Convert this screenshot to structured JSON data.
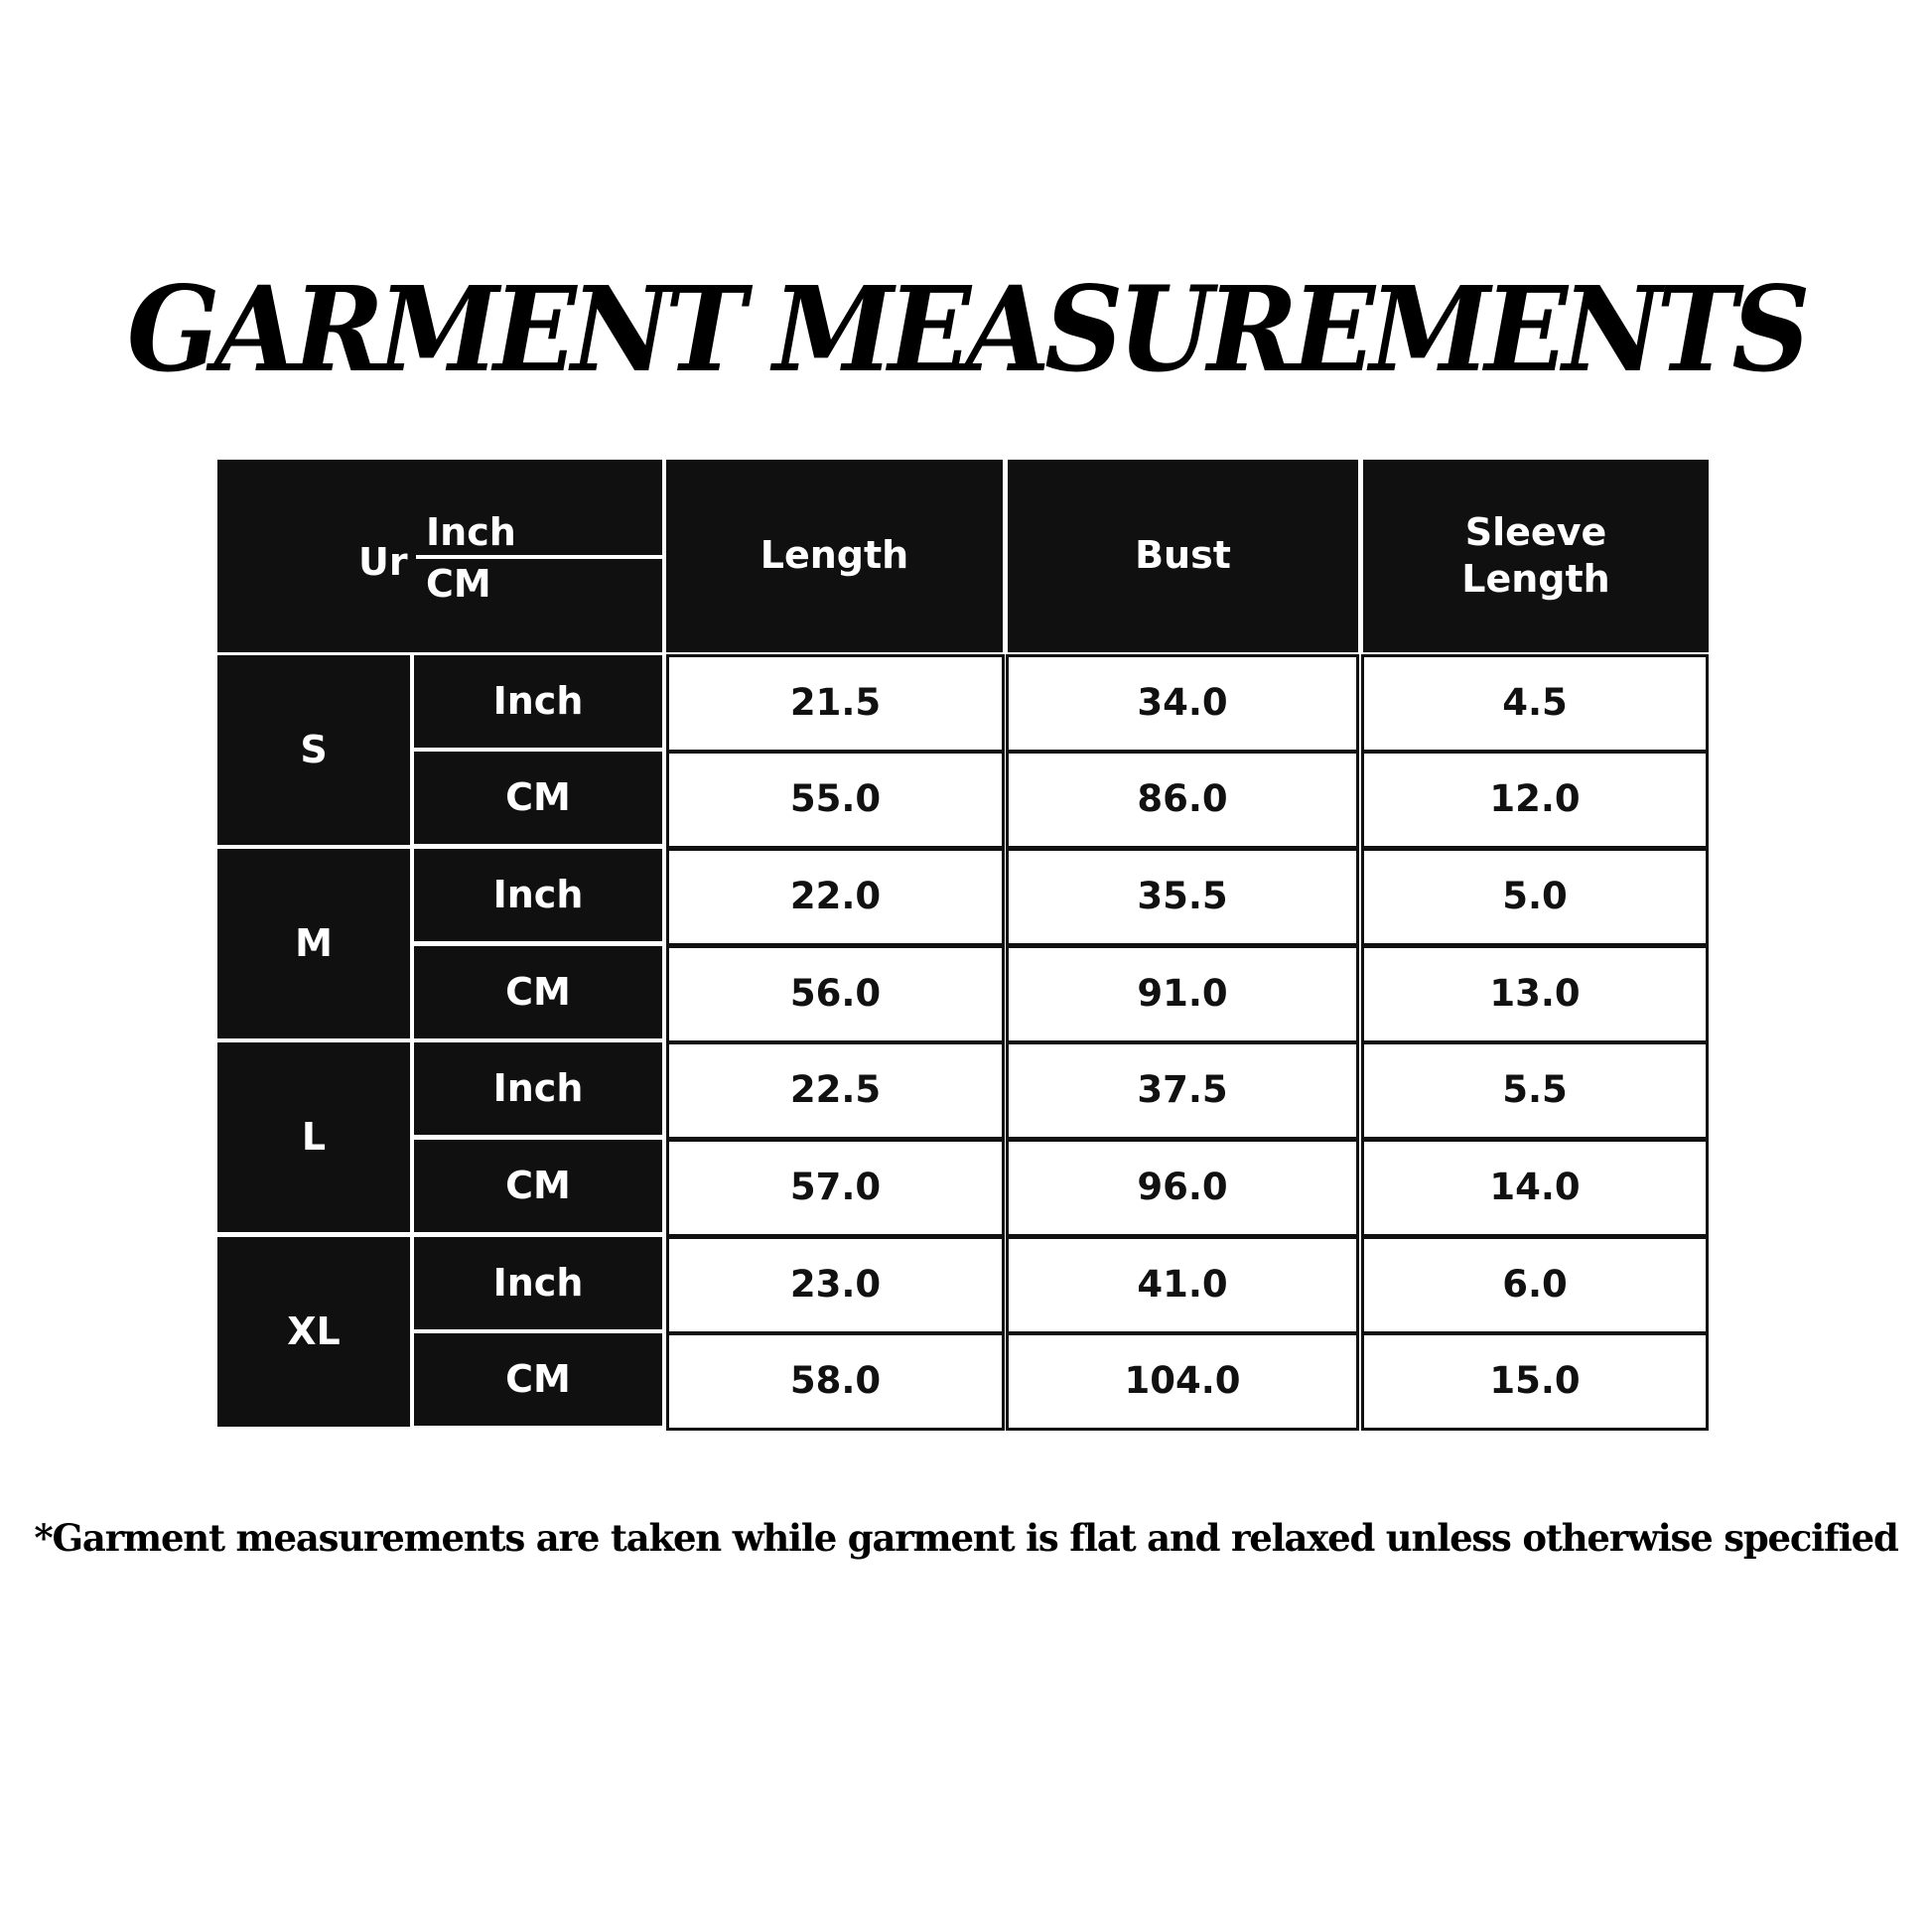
{
  "title": "GARMENT MEASUREMENTS",
  "table": {
    "corner": {
      "label": "Ur",
      "top": "Inch",
      "bottom": "CM"
    },
    "columns": [
      "Length",
      "Bust",
      "Sleeve Length"
    ],
    "sizes": [
      {
        "size": "S",
        "rows": [
          {
            "unit": "Inch",
            "values": [
              "21.5",
              "34.0",
              "4.5"
            ]
          },
          {
            "unit": "CM",
            "values": [
              "55.0",
              "86.0",
              "12.0"
            ]
          }
        ]
      },
      {
        "size": "M",
        "rows": [
          {
            "unit": "Inch",
            "values": [
              "22.0",
              "35.5",
              "5.0"
            ]
          },
          {
            "unit": "CM",
            "values": [
              "56.0",
              "91.0",
              "13.0"
            ]
          }
        ]
      },
      {
        "size": "L",
        "rows": [
          {
            "unit": "Inch",
            "values": [
              "22.5",
              "37.5",
              "5.5"
            ]
          },
          {
            "unit": "CM",
            "values": [
              "57.0",
              "96.0",
              "14.0"
            ]
          }
        ]
      },
      {
        "size": "XL",
        "rows": [
          {
            "unit": "Inch",
            "values": [
              "23.0",
              "41.0",
              "6.0"
            ]
          },
          {
            "unit": "CM",
            "values": [
              "58.0",
              "104.0",
              "15.0"
            ]
          }
        ]
      }
    ]
  },
  "footnote": "*Garment measurements are taken while garment is flat and relaxed unless otherwise specified"
}
